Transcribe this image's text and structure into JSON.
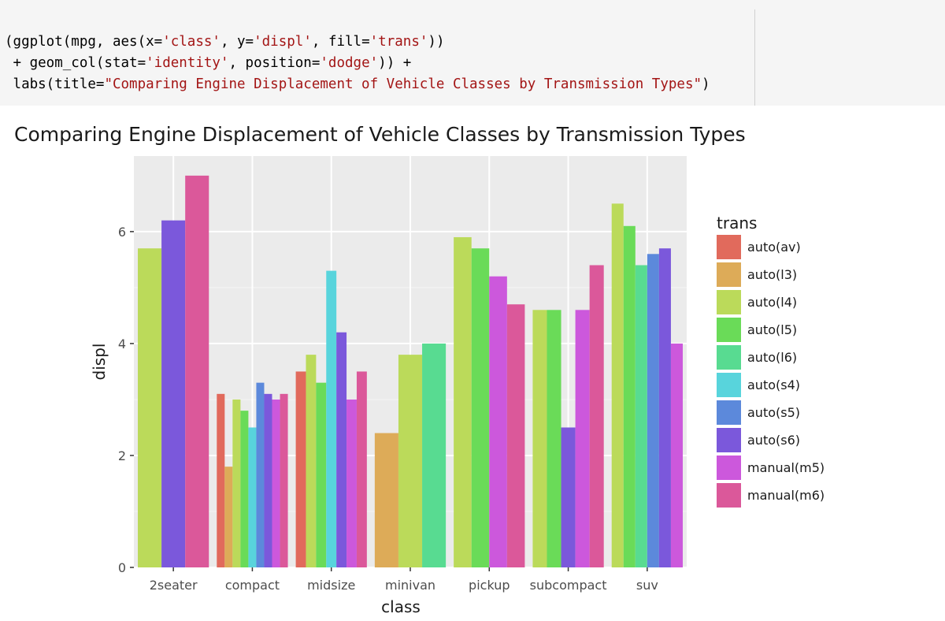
{
  "code": {
    "lines": [
      [
        {
          "t": "(ggplot(mpg, aes(x=",
          "s": false
        },
        {
          "t": "'class'",
          "s": true
        },
        {
          "t": ", y=",
          "s": false
        },
        {
          "t": "'displ'",
          "s": true
        },
        {
          "t": ", fill=",
          "s": false
        },
        {
          "t": "'trans'",
          "s": true
        },
        {
          "t": "))",
          "s": false
        }
      ],
      [
        {
          "t": " + geom_col(stat=",
          "s": false
        },
        {
          "t": "'identity'",
          "s": true
        },
        {
          "t": ", position=",
          "s": false
        },
        {
          "t": "'dodge'",
          "s": true
        },
        {
          "t": ")) +",
          "s": false
        }
      ],
      [
        {
          "t": " labs(title=",
          "s": false
        },
        {
          "t": "\"Comparing Engine Displacement of Vehicle Classes by Transmission Types\"",
          "s": true
        },
        {
          "t": ")",
          "s": false
        }
      ]
    ]
  },
  "chart_data": {
    "type": "bar",
    "title": "Comparing Engine Displacement of Vehicle Classes by Transmission Types",
    "xlabel": "class",
    "ylabel": "displ",
    "ylim": [
      0,
      7.35
    ],
    "yticks": [
      0,
      2,
      4,
      6
    ],
    "grid": true,
    "legend_position": "right",
    "legend_title": "trans",
    "categories": [
      "2seater",
      "compact",
      "midsize",
      "minivan",
      "pickup",
      "subcompact",
      "suv"
    ],
    "series": [
      {
        "name": "auto(av)",
        "color": "#E16A5C",
        "values": [
          null,
          3.1,
          3.5,
          null,
          null,
          null,
          null
        ]
      },
      {
        "name": "auto(l3)",
        "color": "#DDAB58",
        "values": [
          null,
          1.8,
          null,
          2.4,
          null,
          null,
          null
        ]
      },
      {
        "name": "auto(l4)",
        "color": "#BBDA5A",
        "values": [
          5.7,
          3.0,
          3.8,
          3.8,
          5.9,
          4.6,
          6.5
        ]
      },
      {
        "name": "auto(l5)",
        "color": "#6ADB58",
        "values": [
          null,
          2.8,
          3.3,
          null,
          5.7,
          4.6,
          6.1
        ]
      },
      {
        "name": "auto(l6)",
        "color": "#58DB91",
        "values": [
          null,
          null,
          null,
          4.0,
          null,
          null,
          5.4
        ]
      },
      {
        "name": "auto(s4)",
        "color": "#58D4DC",
        "values": [
          null,
          2.5,
          5.3,
          null,
          null,
          null,
          null
        ]
      },
      {
        "name": "auto(s5)",
        "color": "#5C89DB",
        "values": [
          null,
          3.3,
          null,
          null,
          null,
          null,
          5.6
        ]
      },
      {
        "name": "auto(s6)",
        "color": "#7B58DB",
        "values": [
          6.2,
          3.1,
          4.2,
          null,
          null,
          2.5,
          5.7
        ]
      },
      {
        "name": "manual(m5)",
        "color": "#CC58DC",
        "values": [
          null,
          3.0,
          3.0,
          null,
          5.2,
          4.6,
          4.0
        ]
      },
      {
        "name": "manual(m6)",
        "color": "#DB589A",
        "values": [
          7.0,
          3.1,
          3.5,
          null,
          4.7,
          5.4,
          null
        ]
      }
    ]
  },
  "colors": {
    "panel_bg": "#EBEBEB",
    "grid_major": "#FFFFFF",
    "grid_minor": "#F6F6F6",
    "tick_color": "#333333"
  }
}
